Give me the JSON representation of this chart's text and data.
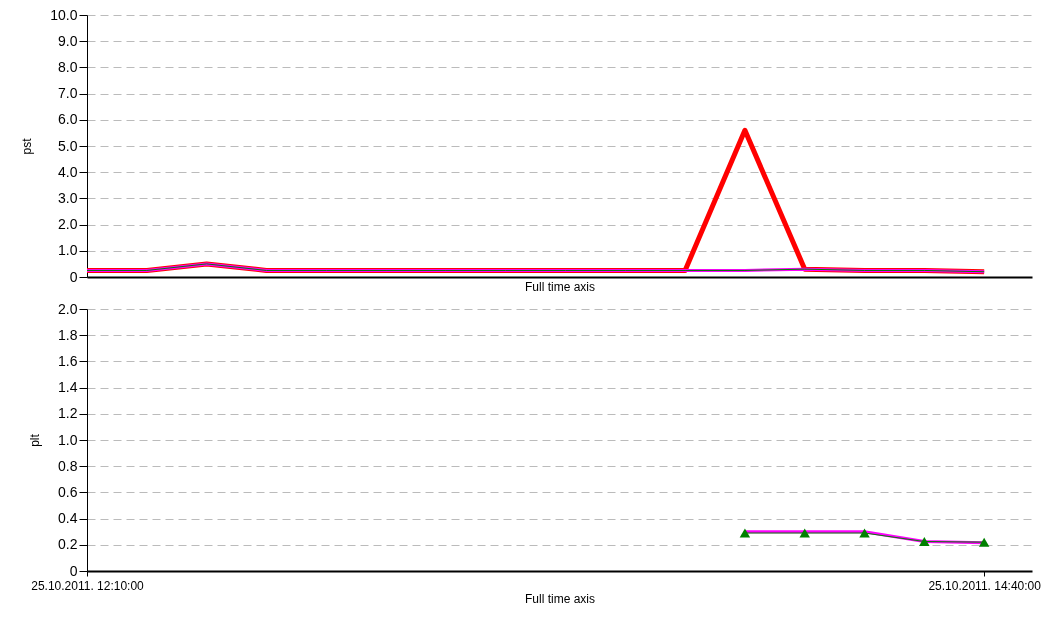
{
  "chart_data": [
    {
      "type": "line",
      "xlabel": "Full time axis",
      "ylabel": "pst",
      "categories": [
        null,
        null,
        null,
        null,
        null,
        null,
        null,
        null,
        null,
        null,
        null,
        null,
        null,
        null,
        null,
        null
      ],
      "ylim": [
        0,
        10
      ],
      "yticks": [
        0,
        {
          "value": 1,
          "label": "1.0"
        },
        {
          "value": 2,
          "label": "2.0"
        },
        {
          "value": 3,
          "label": "3.0"
        },
        {
          "value": 4,
          "label": "4.0"
        },
        {
          "value": 5,
          "label": "5.0"
        },
        {
          "value": 6,
          "label": "6.0"
        },
        {
          "value": 7,
          "label": "7.0"
        },
        {
          "value": 8,
          "label": "8.0"
        },
        {
          "value": 9,
          "label": "9.0"
        },
        {
          "value": 10,
          "label": "10.0"
        }
      ],
      "grid": "y",
      "tick_labels": "y",
      "series": [
        {
          "color": "#ff0000",
          "values": [
            0.25,
            0.25,
            0.5,
            0.25,
            0.25,
            0.25,
            0.25,
            0.25,
            0.25,
            0.25,
            0.25,
            5.6,
            0.3,
            0.25,
            0.25,
            0.2
          ]
        },
        {
          "color": "#ff00ff",
          "values": [
            0.25,
            0.25,
            0.5,
            0.25,
            0.25,
            0.25,
            0.25,
            0.25,
            0.25,
            0.25,
            0.25,
            0.25,
            0.3,
            0.25,
            0.25,
            0.2
          ]
        },
        {
          "color": "#008000",
          "values": [
            0.25,
            0.25,
            0.5,
            0.25,
            0.25,
            0.25,
            0.25,
            0.25,
            0.25,
            0.25,
            0.25,
            0.25,
            0.3,
            0.25,
            0.25,
            0.2
          ]
        }
      ]
    },
    {
      "type": "line",
      "xlabel": "Full time axis",
      "ylabel": "plt",
      "categories": [
        "25.10.2011.  12:10:00",
        null,
        null,
        null,
        null,
        null,
        null,
        null,
        null,
        null,
        null,
        null,
        null,
        null,
        null,
        "25.10.2011.  14:40:00"
      ],
      "ylim": [
        0,
        2
      ],
      "yticks": [
        0,
        {
          "value": 0.2,
          "label": "0.2"
        },
        {
          "value": 0.4,
          "label": "0.4"
        },
        {
          "value": 0.6,
          "label": "0.6"
        },
        {
          "value": 0.8,
          "label": "0.8"
        },
        {
          "value": 1,
          "label": "1.0"
        },
        {
          "value": 1.2,
          "label": "1.2"
        },
        {
          "value": 1.4,
          "label": "1.4"
        },
        {
          "value": 1.6,
          "label": "1.6"
        },
        {
          "value": 1.8,
          "label": "1.8"
        },
        {
          "value": 2,
          "label": "2.0"
        }
      ],
      "grid": "y",
      "series": [
        {
          "color": "#ff00ff",
          "values": [
            null,
            null,
            null,
            null,
            null,
            null,
            null,
            null,
            null,
            null,
            null,
            0.3,
            0.3,
            0.3,
            0.225,
            0.215
          ]
        },
        {
          "color": "#008000",
          "marker": "triangle",
          "values": [
            null,
            null,
            null,
            null,
            null,
            null,
            null,
            null,
            null,
            null,
            null,
            0.29,
            0.29,
            0.29,
            0.225,
            0.22
          ]
        }
      ]
    }
  ]
}
